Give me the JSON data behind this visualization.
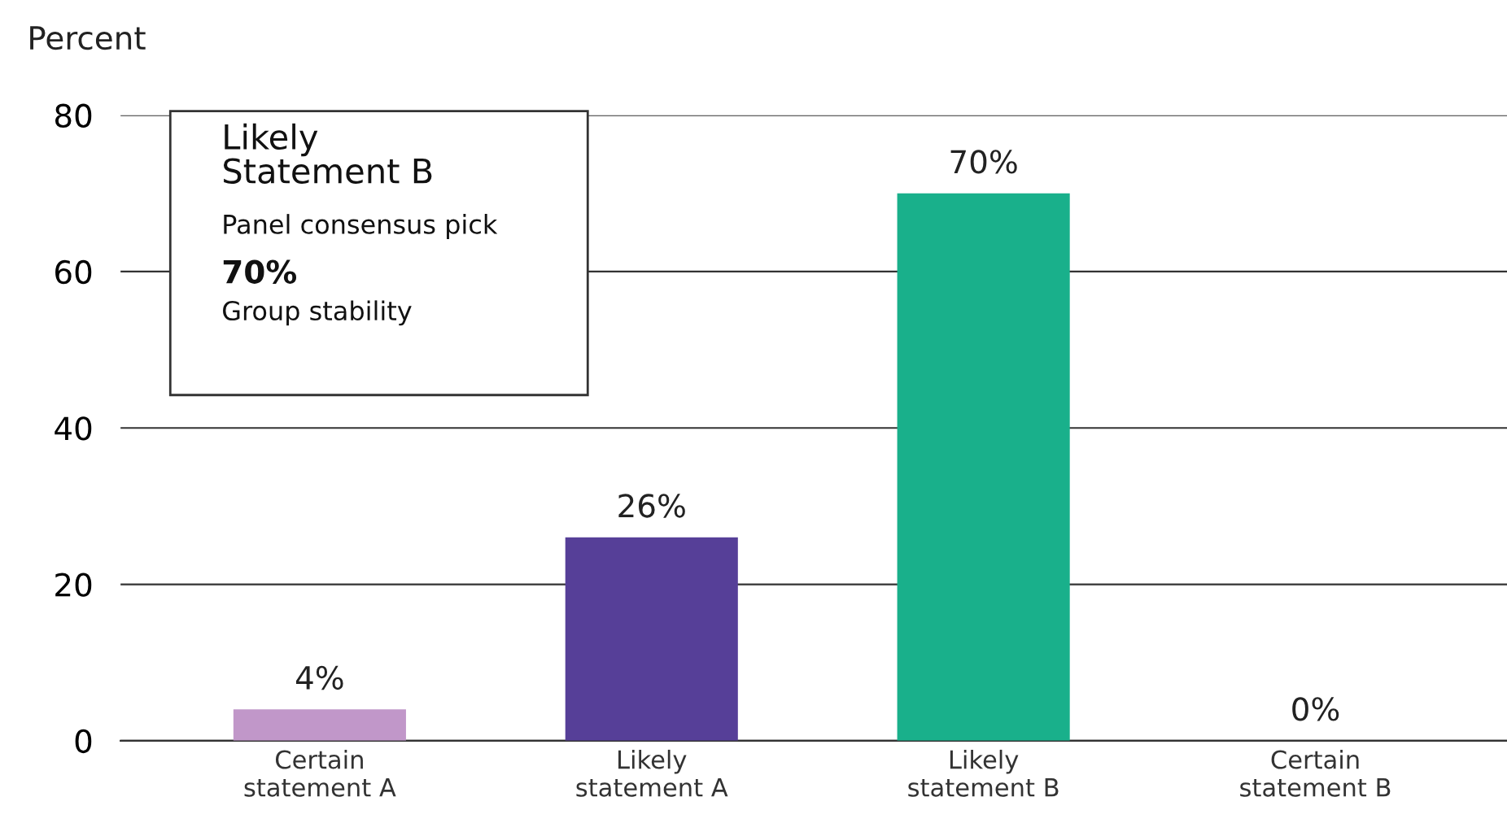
{
  "chart_data": {
    "type": "bar",
    "ylabel": "Percent",
    "categories": [
      "Certain\nstatement A",
      "Likely\nstatement A",
      "Likely\nstatement B",
      "Certain\nstatement B"
    ],
    "values": [
      4,
      26,
      70,
      0
    ],
    "colors": [
      "#c197c9",
      "#563f98",
      "#19b08b",
      "#19b08b"
    ],
    "value_labels": [
      "4%",
      "26%",
      "70%",
      "0%"
    ],
    "ylim": [
      0,
      80
    ],
    "yticks": [
      0,
      20,
      40,
      60,
      80
    ],
    "grid": "y",
    "annotations": [
      "Likely\nStatement B",
      "Panel consensus pick",
      "70%",
      "Group stability"
    ]
  }
}
